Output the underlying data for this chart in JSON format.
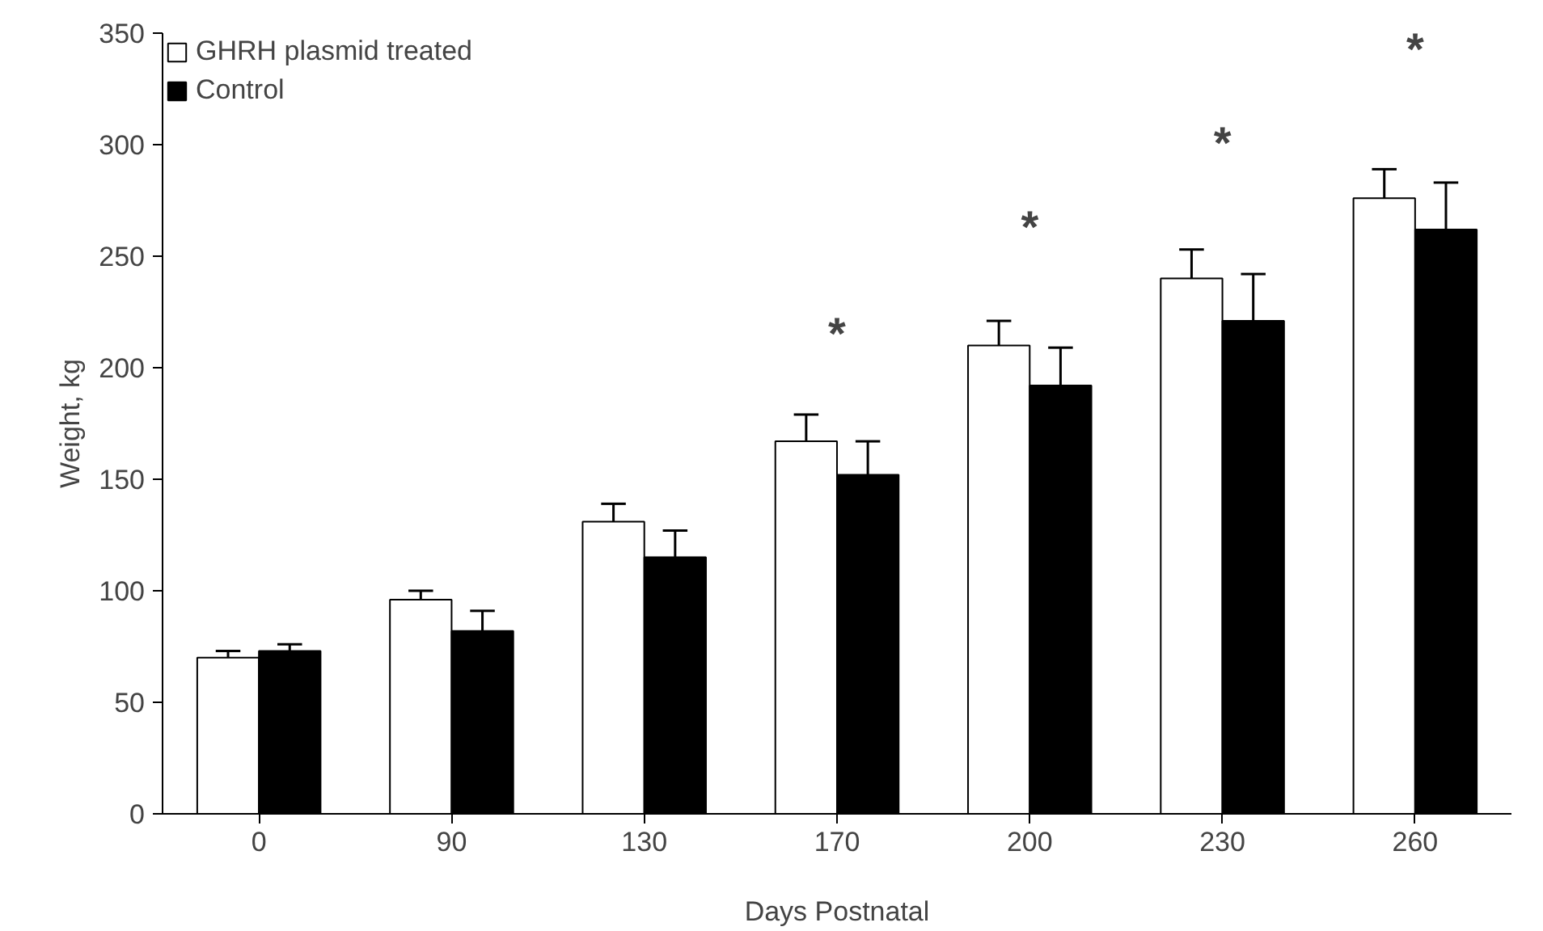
{
  "chart_data": {
    "type": "bar",
    "xlabel": "Days Postnatal",
    "ylabel": "Weight, kg",
    "categories": [
      "0",
      "90",
      "130",
      "170",
      "200",
      "230",
      "260"
    ],
    "series": [
      {
        "name": "GHRH plasmid treated",
        "color": "#ffffff",
        "values": [
          70,
          96,
          131,
          167,
          210,
          240,
          276
        ],
        "errors": [
          3,
          4,
          8,
          12,
          11,
          13,
          13
        ]
      },
      {
        "name": "Control",
        "color": "#000000",
        "values": [
          73,
          82,
          115,
          152,
          192,
          221,
          262
        ],
        "errors": [
          3,
          9,
          12,
          15,
          17,
          21,
          21
        ]
      }
    ],
    "ylim": [
      0,
      350
    ],
    "yticks": [
      0,
      50,
      100,
      150,
      200,
      250,
      300,
      350
    ],
    "grid": false,
    "legend": "top left",
    "annotations": [
      "*",
      "*",
      "*",
      "*"
    ]
  }
}
